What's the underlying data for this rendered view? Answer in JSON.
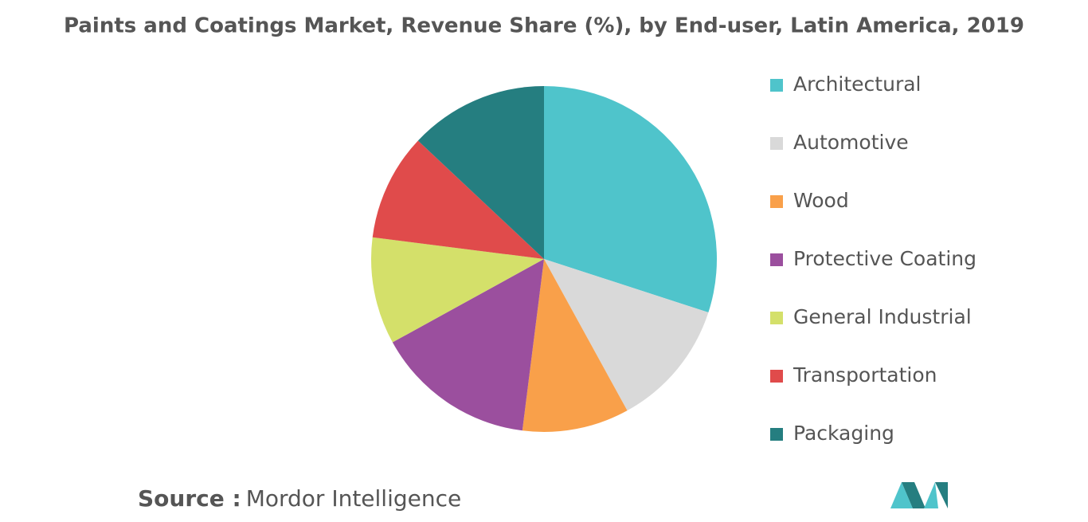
{
  "chart_data": {
    "type": "pie",
    "title": "Paints and Coatings Market, Revenue Share (%), by End-user, Latin America, 2019",
    "categories": [
      "Architectural",
      "Automotive",
      "Wood",
      "Protective Coating",
      "General Industrial",
      "Transportation",
      "Packaging"
    ],
    "values": [
      30,
      12,
      10,
      15,
      10,
      10,
      13
    ],
    "colors": [
      "#4fc4cb",
      "#d9d9d9",
      "#f9a04a",
      "#9b4f9e",
      "#d4e06a",
      "#e04b4b",
      "#257e80"
    ],
    "legend": "right",
    "source_label": "Source :",
    "source": "Mordor Intelligence"
  }
}
